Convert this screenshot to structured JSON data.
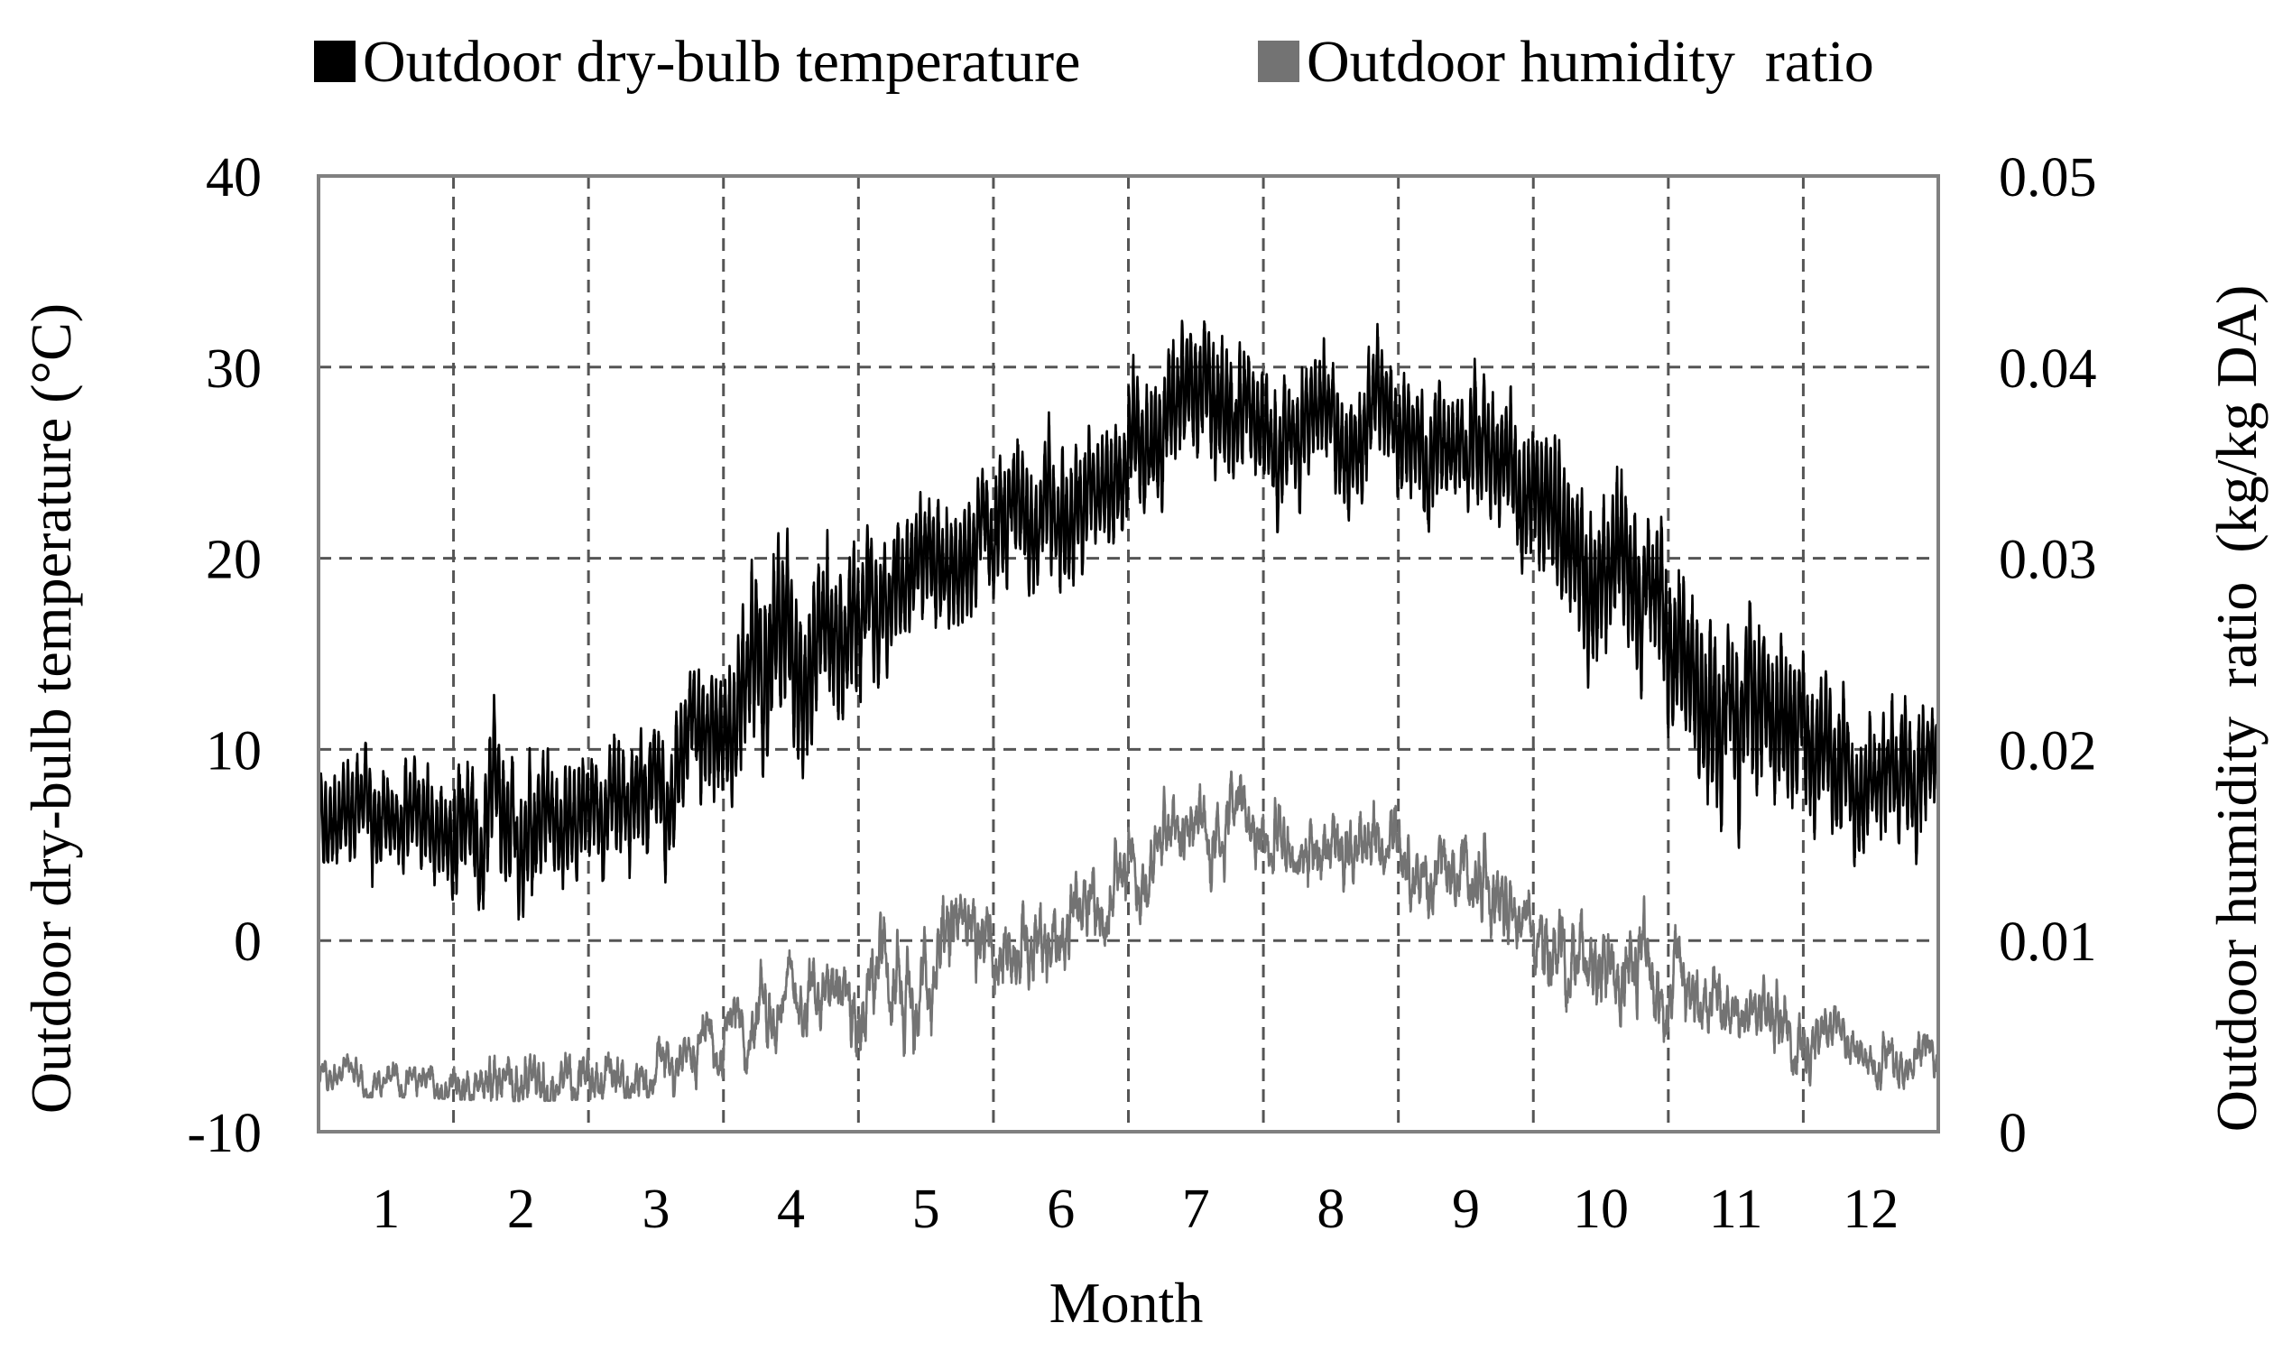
{
  "chart_data": {
    "type": "line",
    "title": "",
    "xlabel": "Month",
    "ylabel_left": "Outdoor dry-bulb temperature (°C)",
    "ylabel_right": "Outdoor humidity  ratio  (kg/kg DA)",
    "categories": [
      "1",
      "2",
      "3",
      "4",
      "5",
      "6",
      "7",
      "8",
      "9",
      "10",
      "11",
      "12"
    ],
    "y_left": {
      "min": -10,
      "max": 40,
      "ticks": [
        -10,
        0,
        10,
        20,
        30,
        40
      ],
      "tick_labels": [
        "-10",
        "0",
        "10",
        "20",
        "30",
        "40"
      ]
    },
    "y_right": {
      "min": 0,
      "max": 0.05,
      "ticks": [
        0,
        0.01,
        0.02,
        0.03,
        0.04,
        0.05
      ],
      "tick_labels": [
        "0",
        "0.01",
        "0.02",
        "0.03",
        "0.04",
        "0.05"
      ]
    },
    "grid": true,
    "legend_position": "top",
    "series": [
      {
        "name": "Outdoor dry-bulb temperature",
        "axis": "left",
        "color": "#000000",
        "resolution": "hourly",
        "monthly_mean": [
          6.5,
          6.0,
          8.0,
          14.5,
          19.5,
          22.0,
          27.5,
          27.5,
          26.0,
          19.5,
          12.0,
          9.0
        ],
        "monthly_min": [
          0.8,
          -0.5,
          2.5,
          5.0,
          12.5,
          16.0,
          18.0,
          19.5,
          18.5,
          12.0,
          3.0,
          2.8
        ],
        "monthly_max": [
          12.0,
          14.0,
          16.5,
          25.0,
          26.5,
          32.0,
          34.5,
          34.0,
          32.0,
          30.0,
          24.0,
          17.0
        ]
      },
      {
        "name": "Outdoor humidity  ratio",
        "axis": "right",
        "color": "#737373",
        "resolution": "hourly",
        "monthly_mean": [
          0.0028,
          0.0024,
          0.0032,
          0.0065,
          0.009,
          0.011,
          0.016,
          0.015,
          0.0135,
          0.009,
          0.006,
          0.0042
        ],
        "monthly_min": [
          0.0018,
          0.0016,
          0.0018,
          0.003,
          0.004,
          0.007,
          0.011,
          0.0105,
          0.0085,
          0.0045,
          0.003,
          0.002
        ],
        "monthly_max": [
          0.006,
          0.0093,
          0.0085,
          0.0122,
          0.0163,
          0.018,
          0.0203,
          0.02,
          0.0192,
          0.017,
          0.0125,
          0.0085
        ]
      }
    ]
  }
}
